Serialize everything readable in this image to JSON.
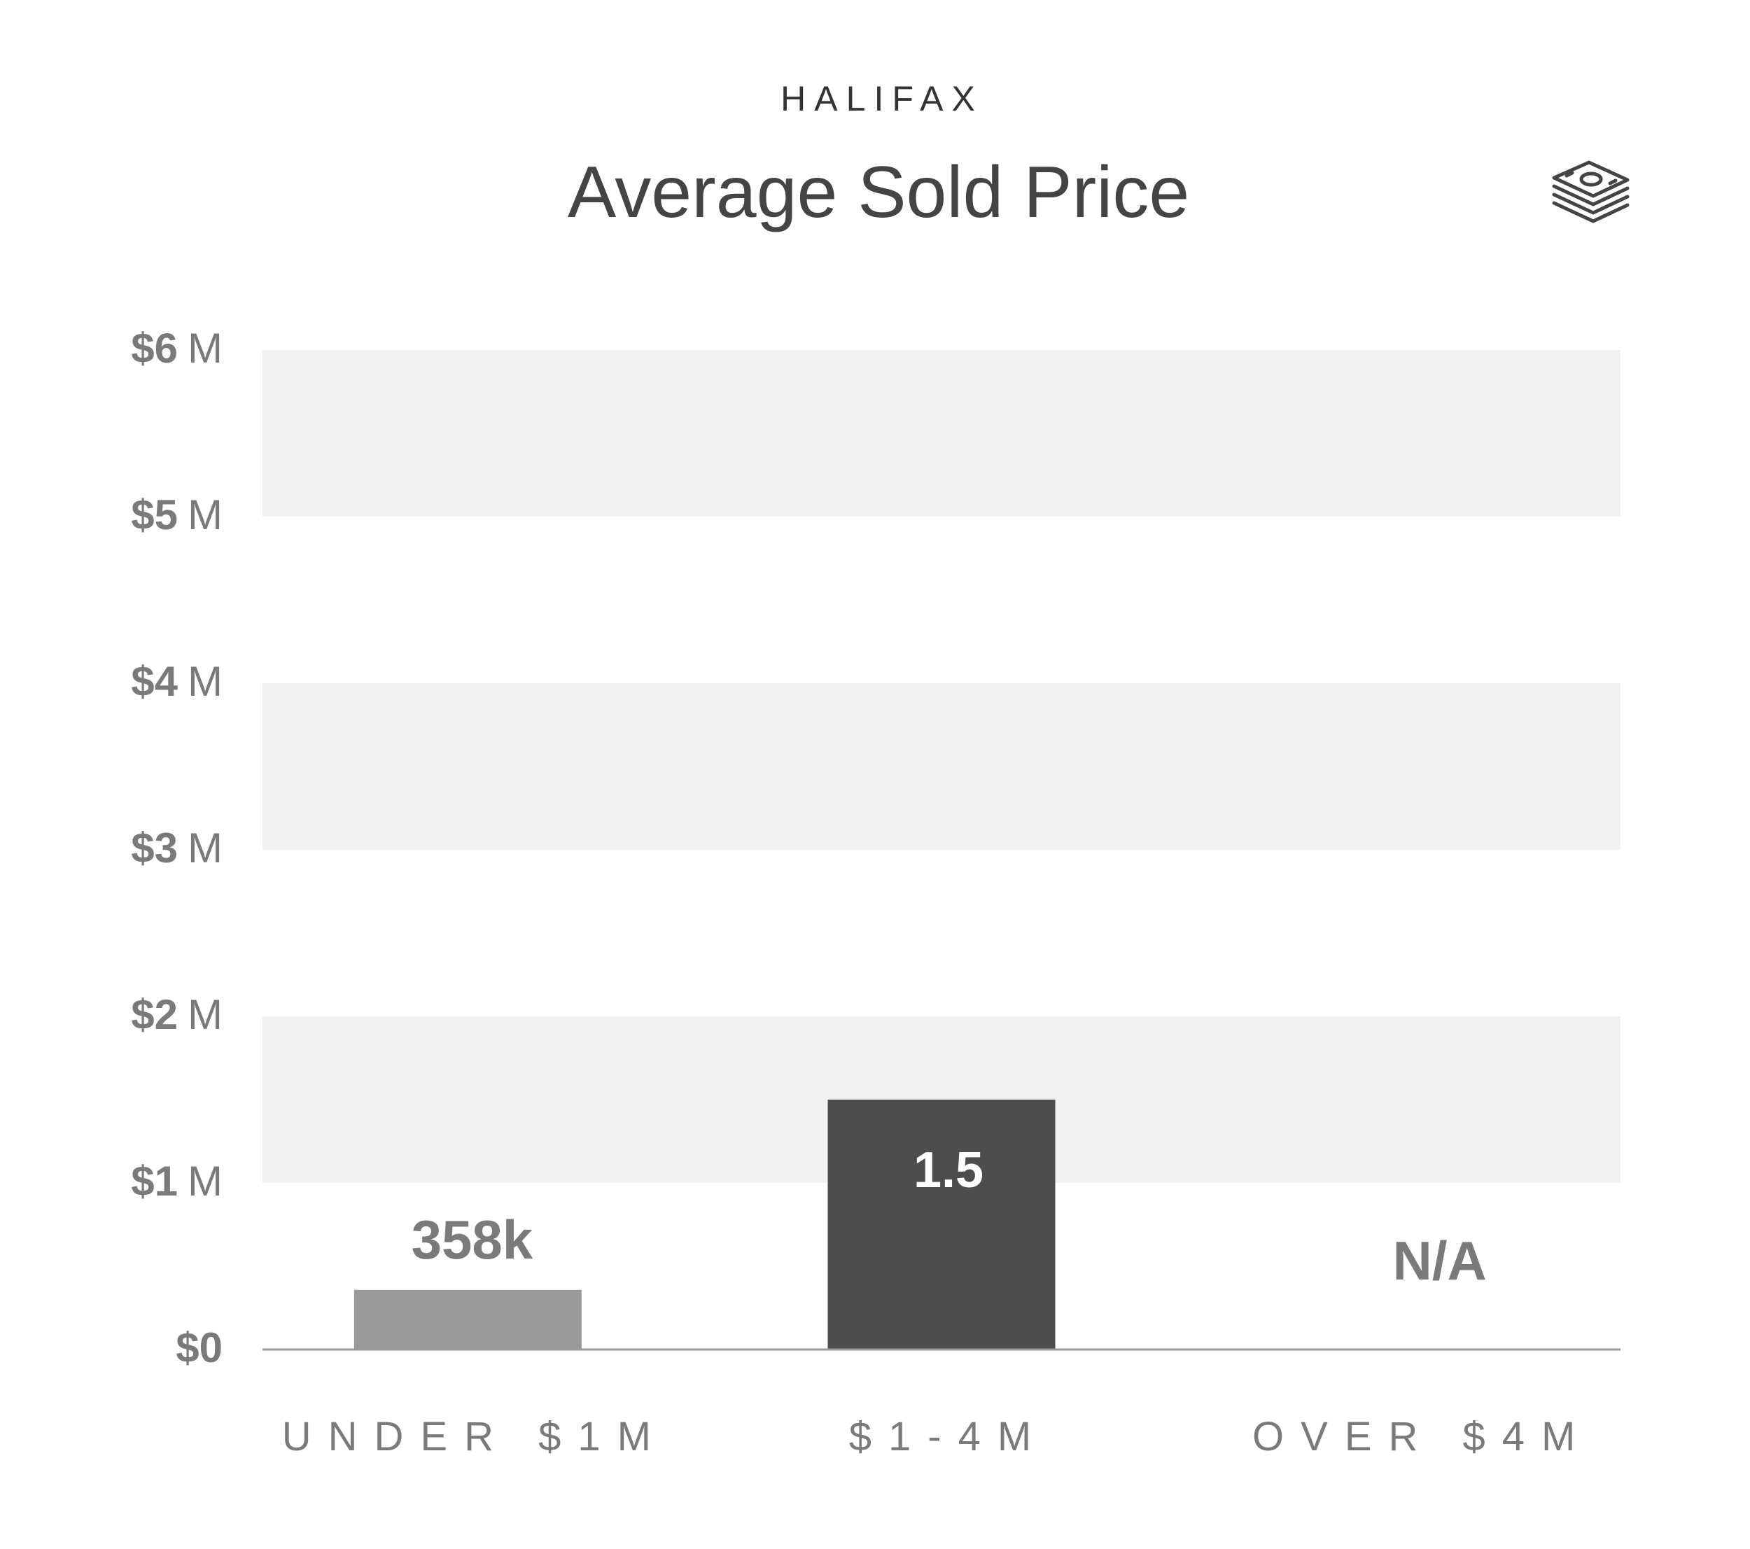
{
  "header": {
    "location": "HALIFAX",
    "title": "Average Sold Price",
    "icon": "money-stack-icon"
  },
  "colors": {
    "band": "#f1f1f1",
    "axis_text": "#7a7a7a",
    "bar_light": "#999999",
    "bar_dark": "#4d4d4d",
    "title_text": "#333333",
    "baseline": "#9a9a9a",
    "label_on_dark": "#ffffff"
  },
  "chart_data": {
    "type": "bar",
    "title": "Average Sold Price",
    "categories": [
      "UNDER $1M",
      "$1-4M",
      "OVER $4M"
    ],
    "values": [
      0.358,
      1.5,
      null
    ],
    "data_labels": [
      "358k",
      "1.5",
      "N/A"
    ],
    "ylim": [
      0,
      6
    ],
    "y_ticks": [
      {
        "value": 0,
        "amount": "$0",
        "unit": ""
      },
      {
        "value": 1,
        "amount": "$1",
        "unit": "M"
      },
      {
        "value": 2,
        "amount": "$2",
        "unit": "M"
      },
      {
        "value": 3,
        "amount": "$3",
        "unit": "M"
      },
      {
        "value": 4,
        "amount": "$4",
        "unit": "M"
      },
      {
        "value": 5,
        "amount": "$5",
        "unit": "M"
      },
      {
        "value": 6,
        "amount": "$6",
        "unit": "M"
      }
    ],
    "shaded_bands": [
      [
        1,
        2
      ],
      [
        3,
        4
      ],
      [
        5,
        6
      ]
    ],
    "grid": false,
    "legend": "none"
  }
}
